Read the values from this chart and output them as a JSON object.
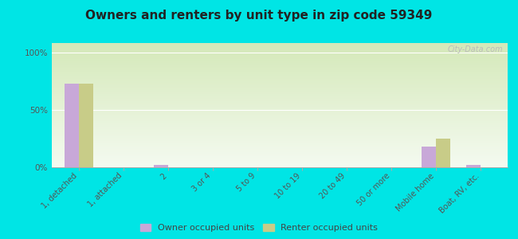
{
  "title": "Owners and renters by unit type in zip code 59349",
  "categories": [
    "1, detached",
    "1, attached",
    "2",
    "3 or 4",
    "5 to 9",
    "10 to 19",
    "20 to 49",
    "50 or more",
    "Mobile home",
    "Boat, RV, etc."
  ],
  "owner_values": [
    73,
    0,
    2,
    0,
    0,
    0,
    0,
    0,
    18,
    2
  ],
  "renter_values": [
    73,
    0,
    0,
    0,
    0,
    0,
    0,
    0,
    25,
    0
  ],
  "owner_color": "#c8a8d8",
  "renter_color": "#c8cc88",
  "grad_top": "#d4e8b8",
  "grad_bottom": "#f4faf0",
  "bg_outer": "#00e5e5",
  "yticks": [
    0,
    50,
    100
  ],
  "ylabels": [
    "0%",
    "50%",
    "100%"
  ],
  "ylim": [
    0,
    108
  ],
  "legend_owner": "Owner occupied units",
  "legend_renter": "Renter occupied units",
  "bar_width": 0.32
}
